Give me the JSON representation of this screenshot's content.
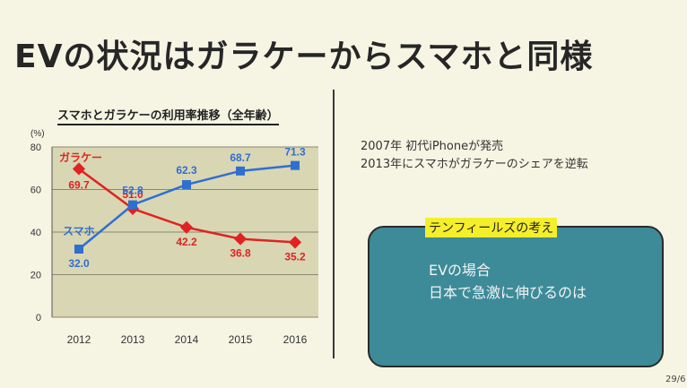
{
  "slide": {
    "title": "EVの状況はガラケーからスマホと同様",
    "page_number": "29/6",
    "notes": [
      "2007年 初代iPhoneが発売",
      "2013年にスマホがガラケーのシェアを逆転"
    ],
    "box": {
      "tag": "テンフィールズの考え",
      "lines": [
        "EVの場合",
        "日本で急激に伸びるのは"
      ],
      "color": "#3d8b98",
      "tag_color": "#f4ef2a"
    }
  },
  "chart_data": {
    "type": "line",
    "title": "スマホとガラケーの利用率推移（全年齢）",
    "ylabel": "(%)",
    "xlabel": "",
    "categories": [
      "2012",
      "2013",
      "2014",
      "2015",
      "2016"
    ],
    "yticks": [
      "0",
      "20",
      "40",
      "60",
      "80"
    ],
    "ylim": [
      0,
      80
    ],
    "grid": true,
    "series": [
      {
        "name": "ガラケー",
        "color": "#e02222",
        "marker": "diamond",
        "values": [
          69.7,
          51.0,
          42.2,
          36.8,
          35.2
        ],
        "labels": [
          "69.7",
          "51.0",
          "42.2",
          "36.8",
          "35.2"
        ]
      },
      {
        "name": "スマホ",
        "color": "#2f6fd0",
        "marker": "square",
        "values": [
          32.0,
          52.8,
          62.3,
          68.7,
          71.3
        ],
        "labels": [
          "32.0",
          "52.8",
          "62.3",
          "68.7",
          "71.3"
        ]
      }
    ]
  }
}
